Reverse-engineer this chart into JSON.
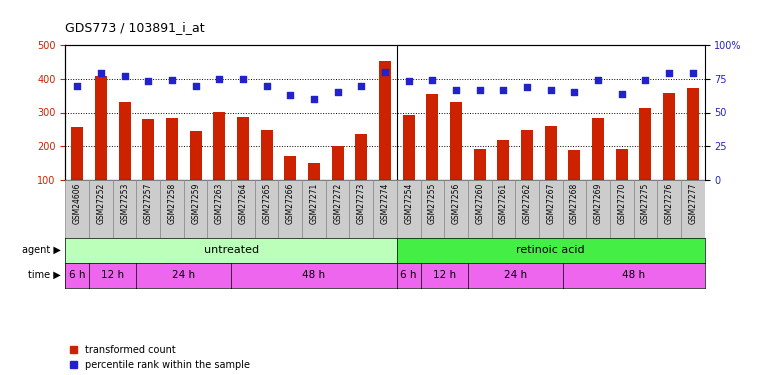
{
  "title": "GDS773 / 103891_i_at",
  "samples": [
    "GSM24606",
    "GSM27252",
    "GSM27253",
    "GSM27257",
    "GSM27258",
    "GSM27259",
    "GSM27263",
    "GSM27264",
    "GSM27265",
    "GSM27266",
    "GSM27271",
    "GSM27272",
    "GSM27273",
    "GSM27274",
    "GSM27254",
    "GSM27255",
    "GSM27256",
    "GSM27260",
    "GSM27261",
    "GSM27262",
    "GSM27267",
    "GSM27268",
    "GSM27269",
    "GSM27270",
    "GSM27275",
    "GSM27276",
    "GSM27277"
  ],
  "bar_values": [
    258,
    408,
    330,
    280,
    283,
    245,
    302,
    287,
    247,
    172,
    150,
    200,
    237,
    453,
    292,
    354,
    330,
    193,
    219,
    247,
    260,
    188,
    283,
    193,
    312,
    358,
    372
  ],
  "dot_values_pct": [
    70,
    79,
    77,
    73,
    74,
    70,
    75,
    75,
    70,
    63,
    60,
    65,
    70,
    80,
    73,
    74,
    67,
    67,
    67,
    69,
    67,
    65,
    74,
    64,
    74,
    79,
    79
  ],
  "ylim_left": [
    100,
    500
  ],
  "ylim_right": [
    0,
    100
  ],
  "yticks_left": [
    100,
    200,
    300,
    400,
    500
  ],
  "yticks_right": [
    0,
    25,
    50,
    75,
    100
  ],
  "bar_color": "#cc2200",
  "dot_color": "#2222cc",
  "xtick_bg_color": "#cccccc",
  "agent_untreated_color": "#bbffbb",
  "agent_retinoic_color": "#44ee44",
  "time_color": "#ee66ee",
  "agent_untreated_label": "untreated",
  "agent_retinoic_label": "retinoic acid",
  "time_groups": [
    {
      "label": "6 h",
      "start": 0,
      "end": 1
    },
    {
      "label": "12 h",
      "start": 1,
      "end": 3
    },
    {
      "label": "24 h",
      "start": 3,
      "end": 7
    },
    {
      "label": "48 h",
      "start": 7,
      "end": 14
    },
    {
      "label": "6 h",
      "start": 14,
      "end": 15
    },
    {
      "label": "12 h",
      "start": 15,
      "end": 17
    },
    {
      "label": "24 h",
      "start": 17,
      "end": 21
    },
    {
      "label": "48 h",
      "start": 21,
      "end": 27
    }
  ],
  "n_untreated": 14,
  "legend_bar_label": "transformed count",
  "legend_dot_label": "percentile rank within the sample",
  "background_color": "#ffffff",
  "hgrid_vals": [
    200,
    300,
    400
  ]
}
